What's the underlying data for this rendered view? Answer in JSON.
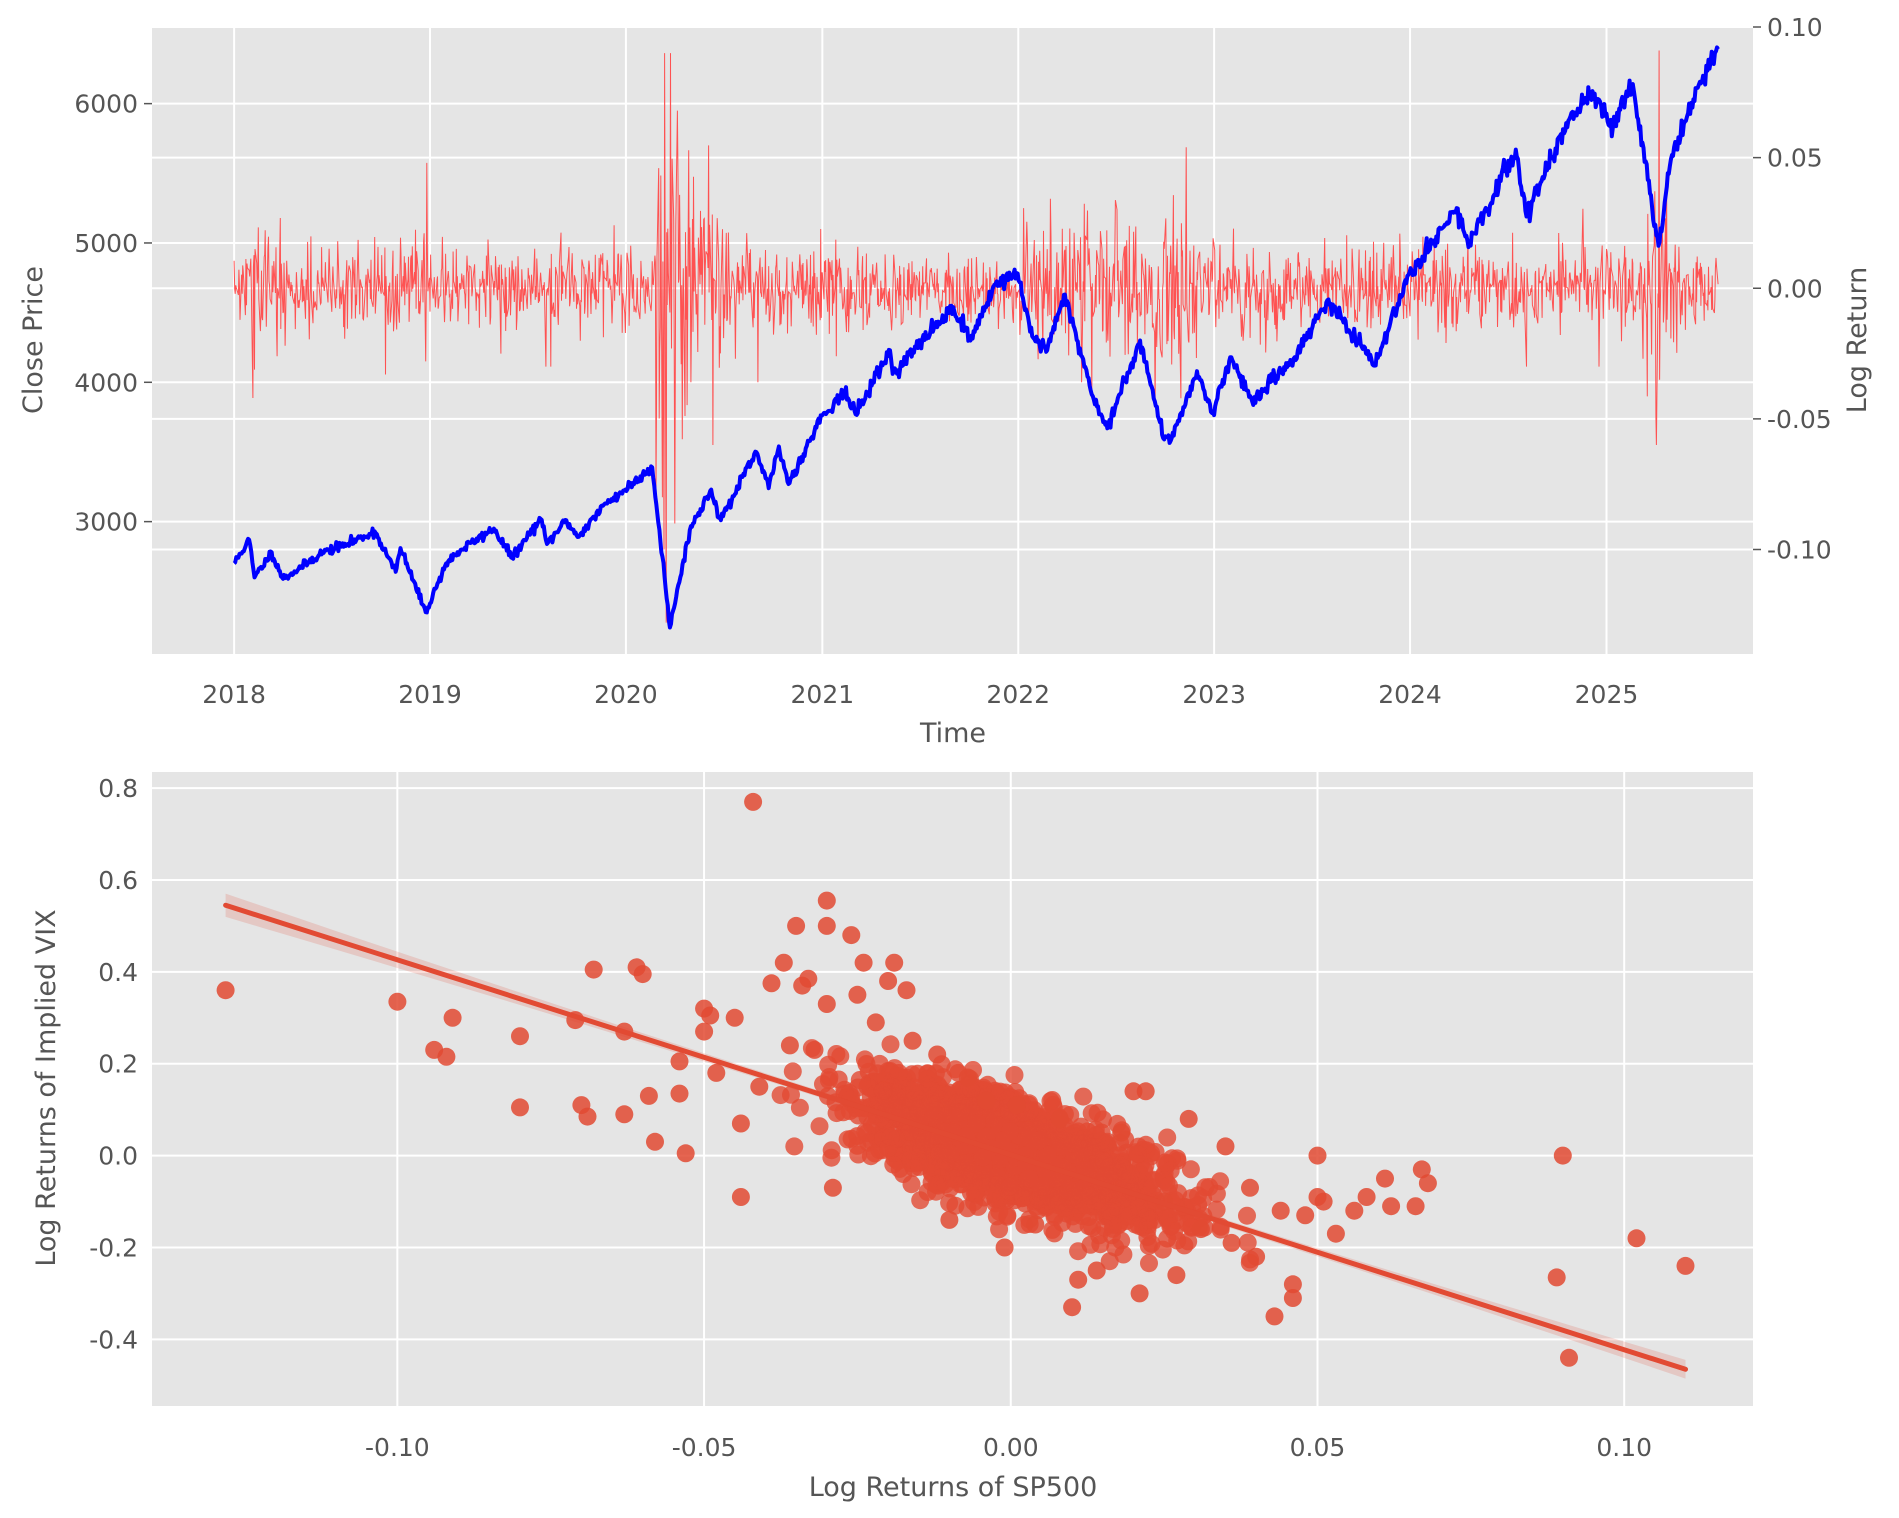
{
  "chart_data": [
    {
      "type": "line",
      "xlabel": "Time",
      "ylabel": "Close Price",
      "y2label": "Log Return",
      "x_ticks": [
        "2018",
        "2019",
        "2020",
        "2021",
        "2022",
        "2023",
        "2024",
        "2025"
      ],
      "x_range": [
        "2017-08",
        "2025-10"
      ],
      "y_ticks": [
        3000,
        4000,
        5000,
        6000
      ],
      "ylim": [
        2050,
        6550
      ],
      "y2_ticks": [
        "0.10",
        "0.05",
        "0.00",
        "-0.05",
        "-0.10"
      ],
      "y2lim": [
        -0.14,
        0.1
      ],
      "grid": true,
      "background": "#e5e5e5",
      "series": [
        {
          "axis": "left",
          "color": "#0000ff",
          "points": [
            [
              "2018-01-01",
              2700
            ],
            [
              "2018-01-29",
              2870
            ],
            [
              "2018-02-08",
              2600
            ],
            [
              "2018-03-12",
              2780
            ],
            [
              "2018-04-02",
              2590
            ],
            [
              "2018-05-01",
              2660
            ],
            [
              "2018-06-15",
              2780
            ],
            [
              "2018-08-01",
              2840
            ],
            [
              "2018-09-20",
              2930
            ],
            [
              "2018-10-29",
              2640
            ],
            [
              "2018-11-07",
              2810
            ],
            [
              "2018-12-24",
              2350
            ],
            [
              "2019-01-31",
              2700
            ],
            [
              "2019-03-01",
              2800
            ],
            [
              "2019-04-30",
              2950
            ],
            [
              "2019-06-03",
              2740
            ],
            [
              "2019-07-26",
              3020
            ],
            [
              "2019-08-07",
              2840
            ],
            [
              "2019-09-12",
              3010
            ],
            [
              "2019-10-03",
              2890
            ],
            [
              "2019-11-25",
              3130
            ],
            [
              "2019-12-31",
              3230
            ],
            [
              "2020-02-19",
              3390
            ],
            [
              "2020-03-09",
              2750
            ],
            [
              "2020-03-23",
              2240
            ],
            [
              "2020-04-29",
              2940
            ],
            [
              "2020-06-08",
              3230
            ],
            [
              "2020-06-26",
              3010
            ],
            [
              "2020-08-31",
              3500
            ],
            [
              "2020-09-23",
              3240
            ],
            [
              "2020-10-12",
              3540
            ],
            [
              "2020-10-30",
              3270
            ],
            [
              "2020-12-31",
              3760
            ],
            [
              "2021-02-12",
              3930
            ],
            [
              "2021-03-04",
              3770
            ],
            [
              "2021-05-07",
              4230
            ],
            [
              "2021-05-12",
              4060
            ],
            [
              "2021-07-30",
              4400
            ],
            [
              "2021-09-02",
              4540
            ],
            [
              "2021-10-04",
              4300
            ],
            [
              "2021-11-18",
              4700
            ],
            [
              "2021-12-31",
              4780
            ],
            [
              "2022-01-27",
              4330
            ],
            [
              "2022-02-24",
              4230
            ],
            [
              "2022-03-29",
              4630
            ],
            [
              "2022-05-20",
              3900
            ],
            [
              "2022-06-16",
              3670
            ],
            [
              "2022-08-16",
              4300
            ],
            [
              "2022-09-30",
              3590
            ],
            [
              "2022-10-12",
              3580
            ],
            [
              "2022-11-30",
              4080
            ],
            [
              "2022-12-28",
              3780
            ],
            [
              "2023-02-02",
              4180
            ],
            [
              "2023-03-13",
              3860
            ],
            [
              "2023-05-31",
              4180
            ],
            [
              "2023-07-31",
              4590
            ],
            [
              "2023-10-27",
              4120
            ],
            [
              "2023-12-29",
              4770
            ],
            [
              "2024-03-28",
              5250
            ],
            [
              "2024-04-19",
              4970
            ],
            [
              "2024-07-16",
              5670
            ],
            [
              "2024-08-05",
              5190
            ],
            [
              "2024-10-18",
              5860
            ],
            [
              "2024-12-06",
              6090
            ],
            [
              "2025-01-13",
              5830
            ],
            [
              "2025-02-19",
              6140
            ],
            [
              "2025-04-08",
              4980
            ],
            [
              "2025-05-01",
              5600
            ],
            [
              "2025-06-30",
              6200
            ],
            [
              "2025-07-28",
              6390
            ]
          ]
        },
        {
          "axis": "right",
          "color": "#ff4a4a",
          "events": [
            [
              "2018-02-05",
              -0.042
            ],
            [
              "2018-02-09",
              0.015
            ],
            [
              "2018-02-26",
              0.012
            ],
            [
              "2018-03-22",
              -0.026
            ],
            [
              "2018-04-06",
              -0.022
            ],
            [
              "2018-10-10",
              -0.033
            ],
            [
              "2018-12-24",
              -0.028
            ],
            [
              "2018-12-26",
              0.048
            ],
            [
              "2019-05-13",
              -0.025
            ],
            [
              "2019-08-05",
              -0.03
            ],
            [
              "2019-08-14",
              -0.03
            ],
            [
              "2020-02-27",
              -0.046
            ],
            [
              "2020-03-02",
              0.046
            ],
            [
              "2020-03-09",
              -0.08
            ],
            [
              "2020-03-12",
              -0.1
            ],
            [
              "2020-03-13",
              0.09
            ],
            [
              "2020-03-16",
              -0.128
            ],
            [
              "2020-03-24",
              0.09
            ],
            [
              "2020-04-06",
              0.068
            ],
            [
              "2020-06-11",
              -0.06
            ],
            [
              "2020-09-03",
              -0.036
            ],
            [
              "2021-01-27",
              -0.026
            ],
            [
              "2021-03-18",
              -0.016
            ],
            [
              "2022-02-24",
              0.015
            ],
            [
              "2022-04-29",
              -0.036
            ],
            [
              "2022-05-18",
              -0.041
            ],
            [
              "2022-09-13",
              -0.044
            ],
            [
              "2022-11-10",
              0.054
            ],
            [
              "2023-03-09",
              -0.019
            ],
            [
              "2024-08-05",
              -0.03
            ],
            [
              "2024-12-18",
              -0.03
            ],
            [
              "2025-03-10",
              -0.027
            ],
            [
              "2025-04-03",
              -0.049
            ],
            [
              "2025-04-04",
              -0.06
            ],
            [
              "2025-04-07",
              -0.002
            ],
            [
              "2025-04-09",
              0.091
            ],
            [
              "2025-04-10",
              -0.035
            ]
          ]
        }
      ]
    },
    {
      "type": "scatter",
      "xlabel": "Log Returns of SP500",
      "ylabel": "Log Returns of Implied VIX",
      "x_ticks": [
        "-0.10",
        "-0.05",
        "0.00",
        "0.05",
        "0.10"
      ],
      "xlim": [
        -0.14,
        0.121
      ],
      "y_ticks": [
        "0.8",
        "0.6",
        "0.4",
        "0.2",
        "0.0",
        "-0.2",
        "-0.4"
      ],
      "ylim": [
        -0.545,
        0.835
      ],
      "grid": true,
      "background": "#e5e5e5",
      "point_color": "#e24a33",
      "regression": {
        "x0": -0.128,
        "y0": 0.545,
        "x1": 0.11,
        "y1": -0.465,
        "color": "#e24a33"
      },
      "points": [
        [
          -0.128,
          0.36
        ],
        [
          -0.1,
          0.335
        ],
        [
          -0.094,
          0.23
        ],
        [
          -0.092,
          0.215
        ],
        [
          -0.091,
          0.3
        ],
        [
          -0.08,
          0.26
        ],
        [
          -0.08,
          0.105
        ],
        [
          -0.071,
          0.295
        ],
        [
          -0.07,
          0.11
        ],
        [
          -0.069,
          0.085
        ],
        [
          -0.068,
          0.405
        ],
        [
          -0.063,
          0.27
        ],
        [
          -0.063,
          0.09
        ],
        [
          -0.061,
          0.41
        ],
        [
          -0.06,
          0.395
        ],
        [
          -0.059,
          0.13
        ],
        [
          -0.058,
          0.03
        ],
        [
          -0.054,
          0.205
        ],
        [
          -0.054,
          0.135
        ],
        [
          -0.053,
          0.005
        ],
        [
          -0.05,
          0.32
        ],
        [
          -0.05,
          0.27
        ],
        [
          -0.049,
          0.305
        ],
        [
          -0.048,
          0.18
        ],
        [
          -0.045,
          0.3
        ],
        [
          -0.044,
          0.07
        ],
        [
          -0.044,
          -0.09
        ],
        [
          -0.042,
          0.77
        ],
        [
          -0.041,
          0.15
        ],
        [
          -0.039,
          0.375
        ],
        [
          -0.037,
          0.42
        ],
        [
          -0.036,
          0.24
        ],
        [
          -0.035,
          0.5
        ],
        [
          -0.034,
          0.37
        ],
        [
          -0.033,
          0.385
        ],
        [
          -0.032,
          0.23
        ],
        [
          -0.03,
          0.555
        ],
        [
          -0.03,
          0.5
        ],
        [
          -0.03,
          0.33
        ],
        [
          -0.029,
          -0.07
        ],
        [
          -0.026,
          0.48
        ],
        [
          -0.025,
          0.35
        ],
        [
          -0.024,
          0.42
        ],
        [
          -0.022,
          0.29
        ],
        [
          -0.02,
          0.38
        ],
        [
          -0.019,
          0.42
        ],
        [
          -0.017,
          0.36
        ],
        [
          -0.016,
          0.25
        ],
        [
          -0.012,
          0.22
        ],
        [
          -0.01,
          -0.14
        ],
        [
          -0.007,
          0.17
        ],
        [
          -0.004,
          0.12
        ],
        [
          -0.001,
          -0.2
        ],
        [
          0.001,
          0.11
        ],
        [
          0.004,
          -0.15
        ],
        [
          0.008,
          0.08
        ],
        [
          0.01,
          -0.33
        ],
        [
          0.011,
          -0.27
        ],
        [
          0.014,
          -0.25
        ],
        [
          0.018,
          0.05
        ],
        [
          0.02,
          0.14
        ],
        [
          0.021,
          -0.3
        ],
        [
          0.022,
          0.14
        ],
        [
          0.025,
          -0.1
        ],
        [
          0.027,
          -0.26
        ],
        [
          0.029,
          0.08
        ],
        [
          0.031,
          -0.16
        ],
        [
          0.035,
          0.02
        ],
        [
          0.036,
          -0.19
        ],
        [
          0.039,
          -0.07
        ],
        [
          0.04,
          -0.22
        ],
        [
          0.043,
          -0.35
        ],
        [
          0.044,
          -0.12
        ],
        [
          0.046,
          -0.31
        ],
        [
          0.046,
          -0.28
        ],
        [
          0.048,
          -0.13
        ],
        [
          0.05,
          -0.09
        ],
        [
          0.05,
          0.0
        ],
        [
          0.051,
          -0.1
        ],
        [
          0.053,
          -0.17
        ],
        [
          0.056,
          -0.12
        ],
        [
          0.058,
          -0.09
        ],
        [
          0.061,
          -0.05
        ],
        [
          0.062,
          -0.11
        ],
        [
          0.066,
          -0.11
        ],
        [
          0.067,
          -0.03
        ],
        [
          0.068,
          -0.06
        ],
        [
          0.089,
          -0.265
        ],
        [
          0.09,
          0.0
        ],
        [
          0.091,
          -0.44
        ],
        [
          0.102,
          -0.18
        ],
        [
          0.11,
          -0.24
        ]
      ],
      "cloud_seed": 7,
      "cloud_count": 2100,
      "cloud_center": [
        0.0,
        0.01
      ],
      "cloud_spread": [
        0.0125,
        0.055
      ]
    }
  ]
}
